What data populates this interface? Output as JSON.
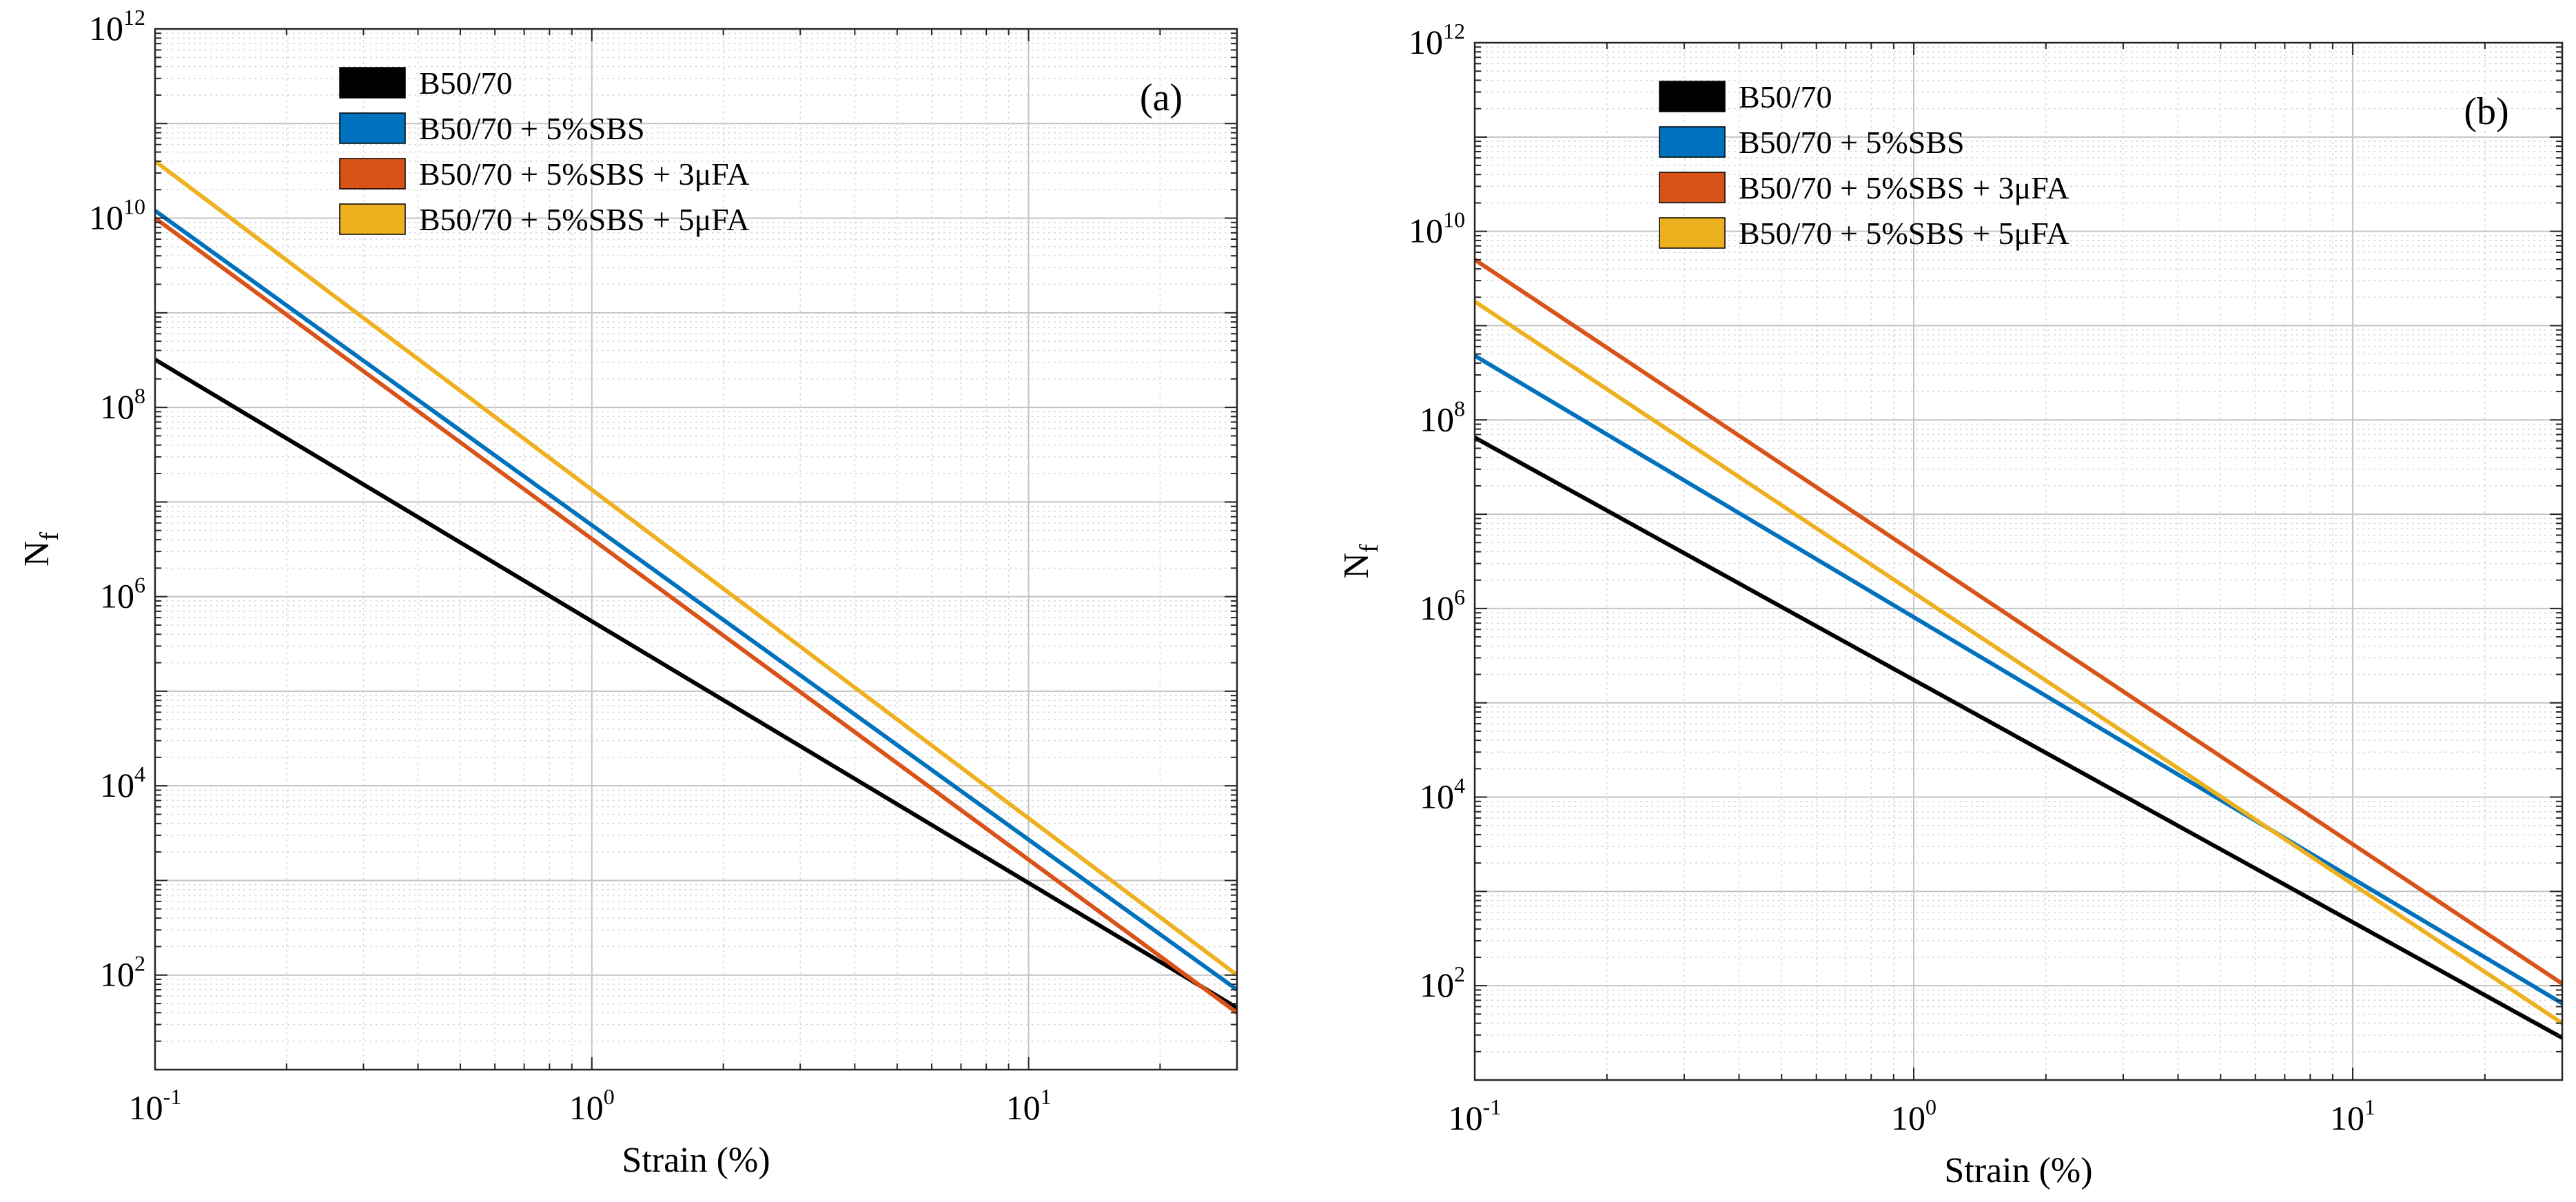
{
  "chart_data": [
    {
      "type": "line",
      "panel_label": "(a)",
      "xscale": "log",
      "yscale": "log",
      "xlim": [
        0.1,
        30
      ],
      "ylim": [
        10,
        1000000000000
      ],
      "xlabel": "Strain (%)",
      "ylabel_main": "N",
      "ylabel_sub": "f",
      "grid": true,
      "legend_position": "top-left",
      "x_ticks": [
        {
          "value": 0.1,
          "base": "10",
          "exp": "-1"
        },
        {
          "value": 1,
          "base": "10",
          "exp": "0"
        },
        {
          "value": 10,
          "base": "10",
          "exp": "1"
        }
      ],
      "y_ticks": [
        {
          "value": 100,
          "base": "10",
          "exp": "2"
        },
        {
          "value": 10000,
          "base": "10",
          "exp": "4"
        },
        {
          "value": 1000000,
          "base": "10",
          "exp": "6"
        },
        {
          "value": 100000000,
          "base": "10",
          "exp": "8"
        },
        {
          "value": 10000000000,
          "base": "10",
          "exp": "10"
        },
        {
          "value": 1000000000000,
          "base": "10",
          "exp": "12"
        }
      ],
      "series": [
        {
          "name": "B50/70",
          "color": "#000000",
          "x": [
            0.1,
            30
          ],
          "y": [
            320000000,
            45
          ]
        },
        {
          "name": "B50/70 + 5%SBS",
          "color": "#0072BD",
          "x": [
            0.1,
            30
          ],
          "y": [
            12000000000,
            70
          ]
        },
        {
          "name": "B50/70 + 5%SBS + 3μFA",
          "color": "#D95319",
          "x": [
            0.1,
            30
          ],
          "y": [
            10000000000,
            40
          ]
        },
        {
          "name": "B50/70 + 5%SBS + 5μFA",
          "color": "#EDB120",
          "x": [
            0.1,
            30
          ],
          "y": [
            40000000000,
            100
          ]
        }
      ]
    },
    {
      "type": "line",
      "panel_label": "(b)",
      "xscale": "log",
      "yscale": "log",
      "xlim": [
        0.1,
        30
      ],
      "ylim": [
        10,
        1000000000000
      ],
      "xlabel": "Strain (%)",
      "ylabel_main": "N",
      "ylabel_sub": "f",
      "grid": true,
      "legend_position": "top-left",
      "x_ticks": [
        {
          "value": 0.1,
          "base": "10",
          "exp": "-1"
        },
        {
          "value": 1,
          "base": "10",
          "exp": "0"
        },
        {
          "value": 10,
          "base": "10",
          "exp": "1"
        }
      ],
      "y_ticks": [
        {
          "value": 100,
          "base": "10",
          "exp": "2"
        },
        {
          "value": 10000,
          "base": "10",
          "exp": "4"
        },
        {
          "value": 1000000,
          "base": "10",
          "exp": "6"
        },
        {
          "value": 100000000,
          "base": "10",
          "exp": "8"
        },
        {
          "value": 10000000000,
          "base": "10",
          "exp": "10"
        },
        {
          "value": 1000000000000,
          "base": "10",
          "exp": "12"
        }
      ],
      "series": [
        {
          "name": "B50/70",
          "color": "#000000",
          "x": [
            0.1,
            30
          ],
          "y": [
            65000000,
            28
          ]
        },
        {
          "name": "B50/70 + 5%SBS",
          "color": "#0072BD",
          "x": [
            0.1,
            30
          ],
          "y": [
            480000000,
            65
          ]
        },
        {
          "name": "B50/70 + 5%SBS + 3μFA",
          "color": "#D95319",
          "x": [
            0.1,
            30
          ],
          "y": [
            5000000000,
            105
          ]
        },
        {
          "name": "B50/70 + 5%SBS + 5μFA",
          "color": "#EDB120",
          "x": [
            0.1,
            30
          ],
          "y": [
            1800000000,
            40
          ]
        }
      ]
    }
  ]
}
